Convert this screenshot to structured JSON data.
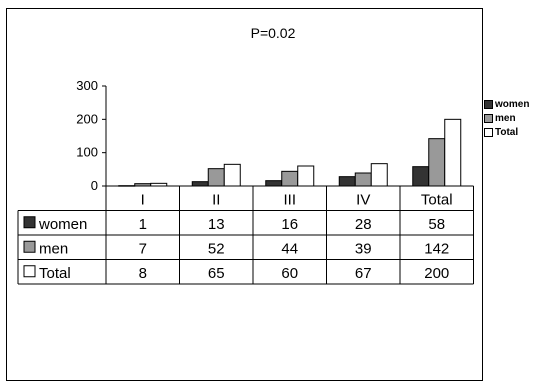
{
  "chart_data": {
    "type": "bar",
    "title": "P=0.02",
    "categories": [
      "I",
      "II",
      "III",
      "IV",
      "Total"
    ],
    "series": [
      {
        "name": "women",
        "values": [
          1,
          13,
          16,
          28,
          58
        ],
        "color": "#333333"
      },
      {
        "name": "men",
        "values": [
          7,
          52,
          44,
          39,
          142
        ],
        "color": "#999999"
      },
      {
        "name": "Total",
        "values": [
          8,
          65,
          60,
          67,
          200
        ],
        "color": "#ffffff"
      }
    ],
    "yticks": [
      0,
      100,
      200,
      300
    ],
    "ylim": [
      0,
      300
    ],
    "legend_position": "right",
    "data_table": true
  }
}
